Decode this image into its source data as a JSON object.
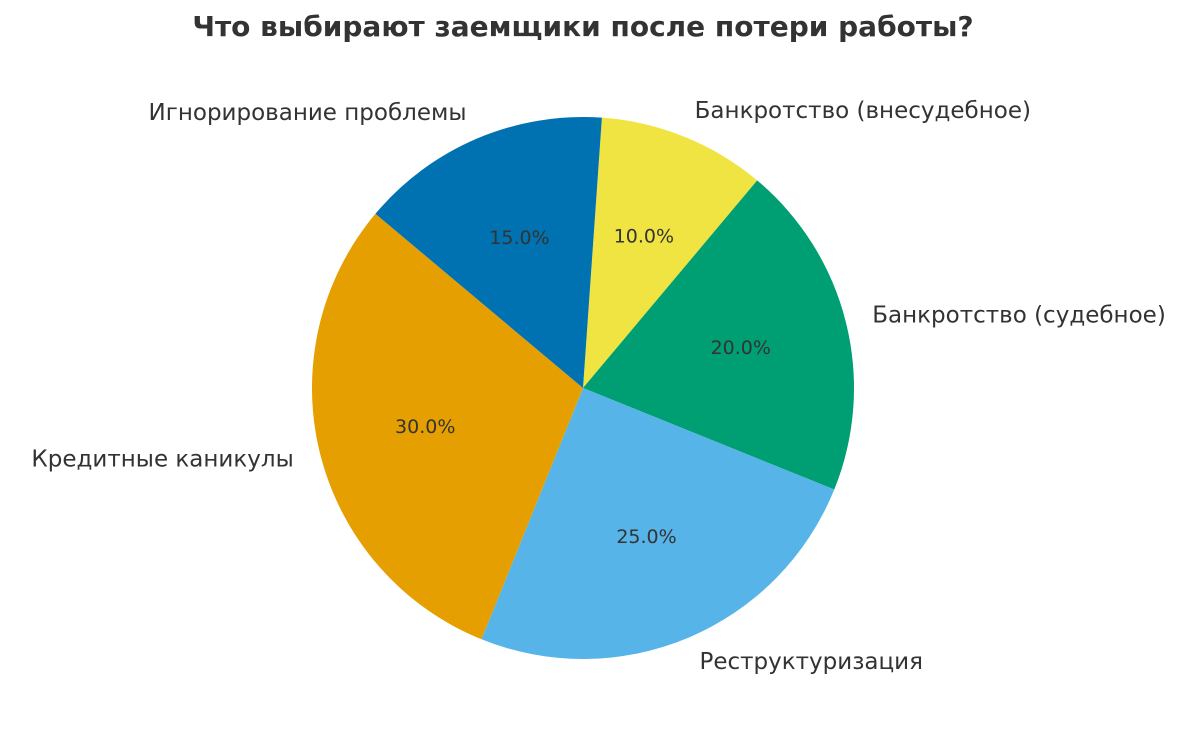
{
  "chart_data": {
    "type": "pie",
    "title": "Что выбирают заемщики после потери работы?",
    "categories": [
      "Банкротство (внесудебное)",
      "Банкротство (судебное)",
      "Реструктуризация",
      "Кредитные каникулы",
      "Игнорирование проблемы"
    ],
    "values": [
      10,
      20,
      25,
      30,
      15
    ],
    "value_labels": [
      "10.0%",
      "20.0%",
      "25.0%",
      "30.0%",
      "15.0%"
    ],
    "colors": [
      "#f0e442",
      "#009e73",
      "#56b4e9",
      "#e69f00",
      "#0072b2"
    ]
  }
}
